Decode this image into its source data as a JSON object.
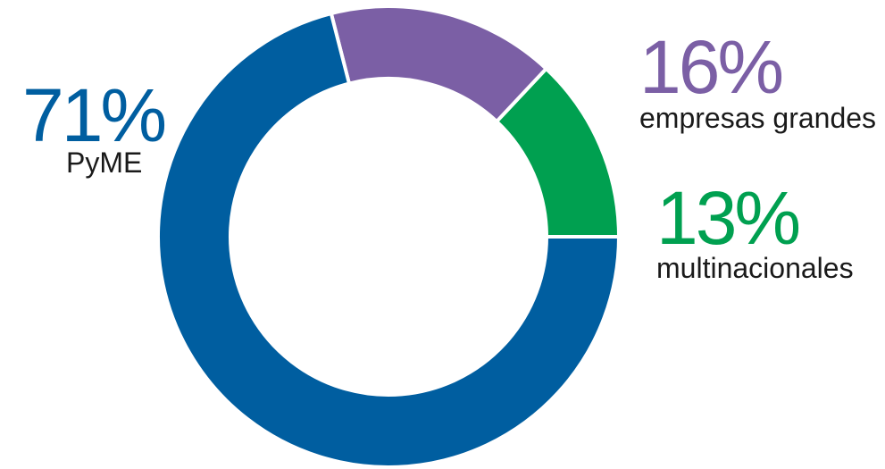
{
  "chart_data": {
    "type": "pie",
    "title": "",
    "slices": [
      {
        "label": "PyME",
        "percent_label": "71%",
        "value": 71,
        "color": "#005ea0"
      },
      {
        "label": "empresas grandes",
        "percent_label": "16%",
        "value": 16,
        "color": "#7b5fa5"
      },
      {
        "label": "multinacionales",
        "percent_label": "13%",
        "value": 13,
        "color": "#00a050"
      }
    ],
    "donut": true,
    "legend": "none"
  }
}
